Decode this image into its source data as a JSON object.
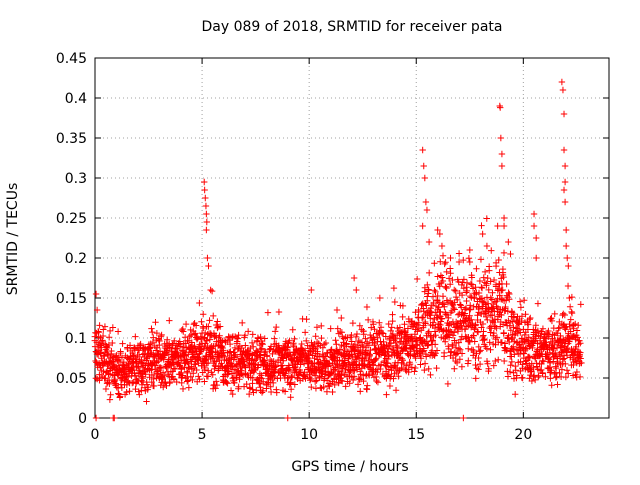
{
  "chart_data": {
    "type": "scatter",
    "title": "Day 089 of 2018, SRMTID for receiver pata",
    "xlabel": "GPS time / hours",
    "ylabel": "SRMTID / TECUs",
    "xlim": [
      0,
      24
    ],
    "ylim": [
      0,
      0.45
    ],
    "xticks": [
      0,
      5,
      10,
      15,
      20
    ],
    "xtick_labels": [
      "0",
      "5",
      "10",
      "15",
      "20"
    ],
    "yticks": [
      0,
      0.05,
      0.1,
      0.15,
      0.2,
      0.25,
      0.3,
      0.35,
      0.4,
      0.45
    ],
    "ytick_labels": [
      "0",
      "0.05",
      "0.1",
      "0.15",
      "0.2",
      "0.25",
      "0.3",
      "0.35",
      "0.4",
      "0.45"
    ],
    "grid": true,
    "marker": "+",
    "marker_color": "#ff0000",
    "series": [
      {
        "name": "SRMTID",
        "color": "#ff0000",
        "baseline_profile": [
          [
            0.0,
            0.075
          ],
          [
            0.5,
            0.07
          ],
          [
            1.0,
            0.055
          ],
          [
            2.0,
            0.065
          ],
          [
            3.0,
            0.07
          ],
          [
            4.0,
            0.075
          ],
          [
            4.8,
            0.08
          ],
          [
            5.3,
            0.09
          ],
          [
            6.0,
            0.07
          ],
          [
            8.0,
            0.065
          ],
          [
            9.0,
            0.07
          ],
          [
            10.0,
            0.07
          ],
          [
            11.0,
            0.065
          ],
          [
            12.0,
            0.075
          ],
          [
            13.0,
            0.08
          ],
          [
            14.0,
            0.085
          ],
          [
            14.8,
            0.09
          ],
          [
            15.5,
            0.115
          ],
          [
            16.5,
            0.13
          ],
          [
            17.5,
            0.125
          ],
          [
            18.5,
            0.13
          ],
          [
            19.0,
            0.135
          ],
          [
            19.5,
            0.1
          ],
          [
            20.0,
            0.085
          ],
          [
            21.0,
            0.085
          ],
          [
            21.8,
            0.085
          ],
          [
            22.3,
            0.1
          ],
          [
            22.7,
            0.075
          ]
        ],
        "spikes": [
          {
            "x": 0.05,
            "y": 0.155
          },
          {
            "x": 0.1,
            "y": 0.135
          },
          {
            "x": 5.1,
            "y": 0.295
          },
          {
            "x": 5.12,
            "y": 0.285
          },
          {
            "x": 5.15,
            "y": 0.275
          },
          {
            "x": 5.18,
            "y": 0.265
          },
          {
            "x": 5.2,
            "y": 0.255
          },
          {
            "x": 5.22,
            "y": 0.245
          },
          {
            "x": 5.2,
            "y": 0.235
          },
          {
            "x": 5.25,
            "y": 0.2
          },
          {
            "x": 5.3,
            "y": 0.19
          },
          {
            "x": 5.4,
            "y": 0.16
          },
          {
            "x": 10.1,
            "y": 0.16
          },
          {
            "x": 11.3,
            "y": 0.135
          },
          {
            "x": 11.5,
            "y": 0.125
          },
          {
            "x": 12.1,
            "y": 0.175
          },
          {
            "x": 12.2,
            "y": 0.16
          },
          {
            "x": 13.3,
            "y": 0.15
          },
          {
            "x": 14.0,
            "y": 0.145
          },
          {
            "x": 15.3,
            "y": 0.335
          },
          {
            "x": 15.35,
            "y": 0.315
          },
          {
            "x": 15.4,
            "y": 0.3
          },
          {
            "x": 15.45,
            "y": 0.27
          },
          {
            "x": 15.5,
            "y": 0.26
          },
          {
            "x": 15.3,
            "y": 0.24
          },
          {
            "x": 15.6,
            "y": 0.22
          },
          {
            "x": 16.0,
            "y": 0.235
          },
          {
            "x": 16.1,
            "y": 0.23
          },
          {
            "x": 16.2,
            "y": 0.215
          },
          {
            "x": 16.6,
            "y": 0.2
          },
          {
            "x": 17.0,
            "y": 0.195
          },
          {
            "x": 17.5,
            "y": 0.21
          },
          {
            "x": 17.5,
            "y": 0.195
          },
          {
            "x": 18.1,
            "y": 0.23
          },
          {
            "x": 18.3,
            "y": 0.215
          },
          {
            "x": 18.8,
            "y": 0.24
          },
          {
            "x": 18.9,
            "y": 0.39
          },
          {
            "x": 18.92,
            "y": 0.388
          },
          {
            "x": 18.95,
            "y": 0.35
          },
          {
            "x": 19.0,
            "y": 0.33
          },
          {
            "x": 19.0,
            "y": 0.315
          },
          {
            "x": 19.1,
            "y": 0.25
          },
          {
            "x": 19.1,
            "y": 0.24
          },
          {
            "x": 19.3,
            "y": 0.22
          },
          {
            "x": 19.4,
            "y": 0.205
          },
          {
            "x": 20.5,
            "y": 0.255
          },
          {
            "x": 20.5,
            "y": 0.24
          },
          {
            "x": 20.6,
            "y": 0.225
          },
          {
            "x": 20.6,
            "y": 0.2
          },
          {
            "x": 21.8,
            "y": 0.42
          },
          {
            "x": 21.85,
            "y": 0.41
          },
          {
            "x": 21.9,
            "y": 0.38
          },
          {
            "x": 21.9,
            "y": 0.335
          },
          {
            "x": 21.95,
            "y": 0.315
          },
          {
            "x": 21.95,
            "y": 0.295
          },
          {
            "x": 21.9,
            "y": 0.285
          },
          {
            "x": 21.95,
            "y": 0.27
          },
          {
            "x": 22.0,
            "y": 0.235
          },
          {
            "x": 22.0,
            "y": 0.215
          },
          {
            "x": 22.05,
            "y": 0.2
          },
          {
            "x": 22.1,
            "y": 0.19
          },
          {
            "x": 22.15,
            "y": 0.15
          }
        ],
        "zero_points": [
          {
            "x": 0.05,
            "y": 0
          },
          {
            "x": 0.85,
            "y": 0
          },
          {
            "x": 0.9,
            "y": 0
          },
          {
            "x": 9.0,
            "y": 0
          },
          {
            "x": 17.2,
            "y": 0
          }
        ],
        "generated_sample_interval_hours": 0.0083,
        "x_range": [
          0.0,
          22.7
        ]
      }
    ]
  }
}
